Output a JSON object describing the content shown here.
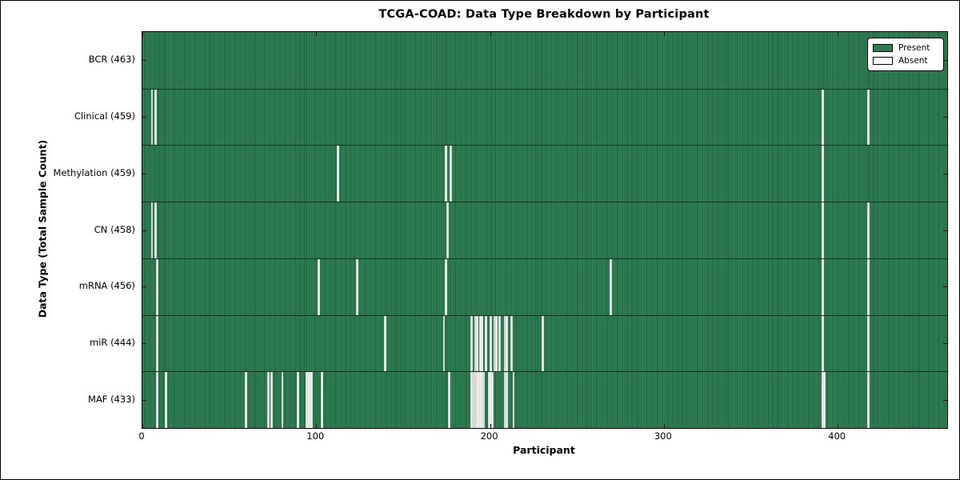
{
  "title": "TCGA-COAD: Data Type Breakdown by Participant",
  "chart_data": {
    "type": "heatmap",
    "title": "TCGA-COAD: Data Type Breakdown by Participant",
    "xlabel": "Participant",
    "ylabel": "Data Type (Total Sample Count)",
    "n_participants": 463,
    "x_ticks": [
      0,
      100,
      200,
      300,
      400
    ],
    "xlim": [
      0,
      463
    ],
    "grid": false,
    "legend_position": "upper right",
    "present_color": "#2E7D50",
    "absent_color": "#FFFFFF",
    "legend": [
      {
        "label": "Present",
        "color": "#2E7D50"
      },
      {
        "label": "Absent",
        "color": "#FFFFFF"
      }
    ],
    "rows": [
      {
        "name": "BCR",
        "label": "BCR (463)",
        "total": 463,
        "absent": []
      },
      {
        "name": "Clinical",
        "label": "Clinical (459)",
        "total": 459,
        "absent": [
          5,
          7,
          391,
          417
        ]
      },
      {
        "name": "Methylation",
        "label": "Methylation (459)",
        "total": 459,
        "absent": [
          112,
          174,
          177,
          391
        ]
      },
      {
        "name": "CN",
        "label": "CN (458)",
        "total": 458,
        "absent": [
          5,
          7,
          175,
          391,
          417
        ]
      },
      {
        "name": "mRNA",
        "label": "mRNA (456)",
        "total": 456,
        "absent": [
          8,
          101,
          123,
          174,
          269,
          391,
          417
        ]
      },
      {
        "name": "miR",
        "label": "miR (444)",
        "total": 444,
        "absent": [
          8,
          139,
          173,
          189,
          191,
          192,
          194,
          195,
          197,
          200,
          202,
          203,
          205,
          208,
          209,
          212,
          230,
          391,
          417
        ]
      },
      {
        "name": "MAF",
        "label": "MAF (433)",
        "total": 433,
        "absent": [
          8,
          13,
          59,
          72,
          74,
          80,
          89,
          94,
          95,
          96,
          97,
          103,
          176,
          189,
          190,
          191,
          192,
          193,
          194,
          195,
          196,
          199,
          200,
          201,
          208,
          209,
          213,
          391,
          392,
          417
        ]
      }
    ]
  }
}
